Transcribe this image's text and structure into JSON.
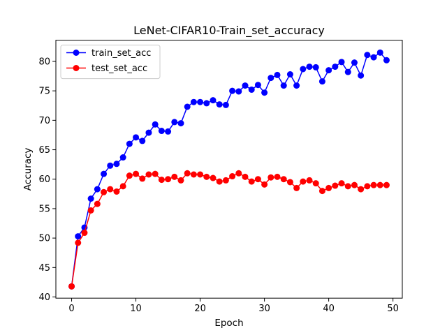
{
  "chart_data": {
    "type": "line",
    "title": "LeNet-CIFAR10-Train_set_accuracy",
    "xlabel": "Epoch",
    "ylabel": "Accuracy",
    "xlim": [
      -2.45,
      51.45
    ],
    "ylim": [
      39.8,
      83.6
    ],
    "xticks": [
      0,
      10,
      20,
      30,
      40,
      50
    ],
    "yticks": [
      40,
      45,
      50,
      55,
      60,
      65,
      70,
      75,
      80
    ],
    "grid": false,
    "legend_position": "top-left",
    "x": [
      0,
      1,
      2,
      3,
      4,
      5,
      6,
      7,
      8,
      9,
      10,
      11,
      12,
      13,
      14,
      15,
      16,
      17,
      18,
      19,
      20,
      21,
      22,
      23,
      24,
      25,
      26,
      27,
      28,
      29,
      30,
      31,
      32,
      33,
      34,
      35,
      36,
      37,
      38,
      39,
      40,
      41,
      42,
      43,
      44,
      45,
      46,
      47,
      48,
      49
    ],
    "series": [
      {
        "name": "train_set_acc",
        "color": "#0000ff",
        "values": [
          41.8,
          50.3,
          51.8,
          56.7,
          58.3,
          60.9,
          62.3,
          62.6,
          63.7,
          66.0,
          67.1,
          66.5,
          67.9,
          69.3,
          68.2,
          68.1,
          69.7,
          69.5,
          72.3,
          73.1,
          73.1,
          72.9,
          73.4,
          72.7,
          72.6,
          75.0,
          74.9,
          75.9,
          75.2,
          76.0,
          74.7,
          77.2,
          77.7,
          75.9,
          77.8,
          75.9,
          78.7,
          79.1,
          79.0,
          76.6,
          78.5,
          79.1,
          79.9,
          78.2,
          79.8,
          77.6,
          81.1,
          80.7,
          81.5,
          80.2
        ]
      },
      {
        "name": "test_set_acc",
        "color": "#ff0000",
        "values": [
          41.8,
          49.2,
          50.9,
          54.7,
          55.8,
          57.8,
          58.3,
          57.9,
          58.8,
          60.6,
          60.9,
          60.1,
          60.8,
          60.9,
          59.9,
          60.0,
          60.4,
          59.8,
          61.0,
          60.8,
          60.8,
          60.4,
          60.2,
          59.6,
          59.8,
          60.5,
          61.0,
          60.4,
          59.6,
          60.0,
          59.1,
          60.3,
          60.4,
          60.0,
          59.5,
          58.5,
          59.6,
          59.8,
          59.3,
          58.0,
          58.5,
          58.9,
          59.3,
          58.8,
          59.0,
          58.3,
          58.8,
          59.0,
          59.0,
          59.0
        ]
      }
    ]
  }
}
